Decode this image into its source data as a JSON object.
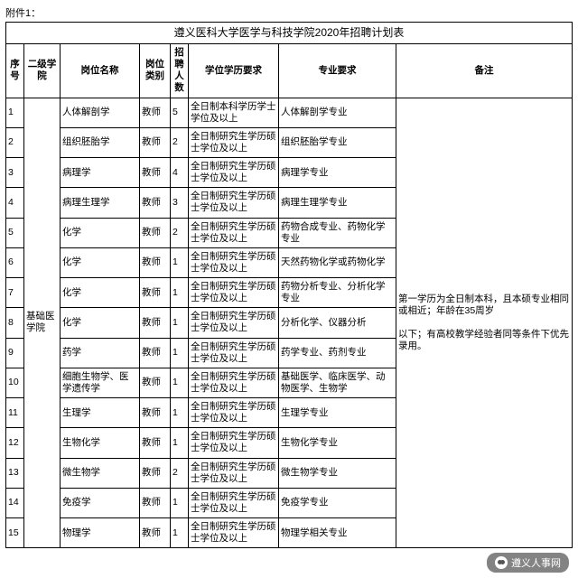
{
  "attachment_label": "附件1：",
  "title": "遵义医科大学医学与科技学院2020年招聘计划表",
  "headers": {
    "seq": "序号",
    "dept": "二级学院",
    "position": "岗位名称",
    "type": "岗位类别",
    "count": "招聘人数",
    "edu": "学位学历要求",
    "major": "专业要求",
    "note": "备注"
  },
  "dept_merged": "基础医学院",
  "note_merged": "第一学历为全日制本科，且本硕专业相同或相近；年龄在35周岁\n\n以下；有高校教学经验者同等条件下优先录用。",
  "rows": [
    {
      "seq": "1",
      "position": "人体解剖学",
      "type": "教师",
      "count": "5",
      "edu": "全日制本科学历学士学位及以上",
      "major": "人体解剖学专业"
    },
    {
      "seq": "2",
      "position": "组织胚胎学",
      "type": "教师",
      "count": "2",
      "edu": "全日制研究生学历硕士学位及以上",
      "major": "组织胚胎学专业"
    },
    {
      "seq": "3",
      "position": "病理学",
      "type": "教师",
      "count": "4",
      "edu": "全日制研究生学历硕士学位及以上",
      "major": "病理学专业"
    },
    {
      "seq": "4",
      "position": "病理生理学",
      "type": "教师",
      "count": "3",
      "edu": "全日制研究生学历硕士学位及以上",
      "major": "病理生理学专业"
    },
    {
      "seq": "5",
      "position": "化学",
      "type": "教师",
      "count": "2",
      "edu": "全日制研究生学历硕士学位及以上",
      "major": "药物合成专业、药物化学专业"
    },
    {
      "seq": "6",
      "position": "化学",
      "type": "教师",
      "count": "1",
      "edu": "全日制研究生学历硕士学位及以上",
      "major": "天然药物化学或药物化学"
    },
    {
      "seq": "7",
      "position": "化学",
      "type": "教师",
      "count": "1",
      "edu": "全日制研究生学历硕士学位及以上",
      "major": "药物分析专业、分析化学专业"
    },
    {
      "seq": "8",
      "position": "化学",
      "type": "教师",
      "count": "1",
      "edu": "全日制研究生学历硕士学位及以上",
      "major": "分析化学、仪器分析"
    },
    {
      "seq": "9",
      "position": "药学",
      "type": "教师",
      "count": "1",
      "edu": "全日制研究生学历硕士学位及以上",
      "major": "药学专业、药剂专业"
    },
    {
      "seq": "10",
      "position": "细胞生物学、医学遗传学",
      "type": "教师",
      "count": "1",
      "edu": "全日制研究生学历硕士学位及以上",
      "major": "基础医学、临床医学、动物医学、生物学"
    },
    {
      "seq": "11",
      "position": "生理学",
      "type": "教师",
      "count": "1",
      "edu": "全日制研究生学历硕士学位及以上",
      "major": "生理学专业"
    },
    {
      "seq": "12",
      "position": "生物化学",
      "type": "教师",
      "count": "1",
      "edu": "全日制研究生学历硕士学位及以上",
      "major": "生物化学专业"
    },
    {
      "seq": "13",
      "position": "微生物学",
      "type": "教师",
      "count": "2",
      "edu": "全日制研究生学历硕士学位及以上",
      "major": "微生物学专业"
    },
    {
      "seq": "14",
      "position": "免疫学",
      "type": "教师",
      "count": "1",
      "edu": "全日制研究生学历硕士学位及以上",
      "major": "免疫学专业"
    },
    {
      "seq": "15",
      "position": "物理学",
      "type": "教师",
      "count": "1",
      "edu": "全日制研究生学历硕士学位及以上",
      "major": "物理学相关专业"
    }
  ],
  "watermark": "遵义人事网"
}
